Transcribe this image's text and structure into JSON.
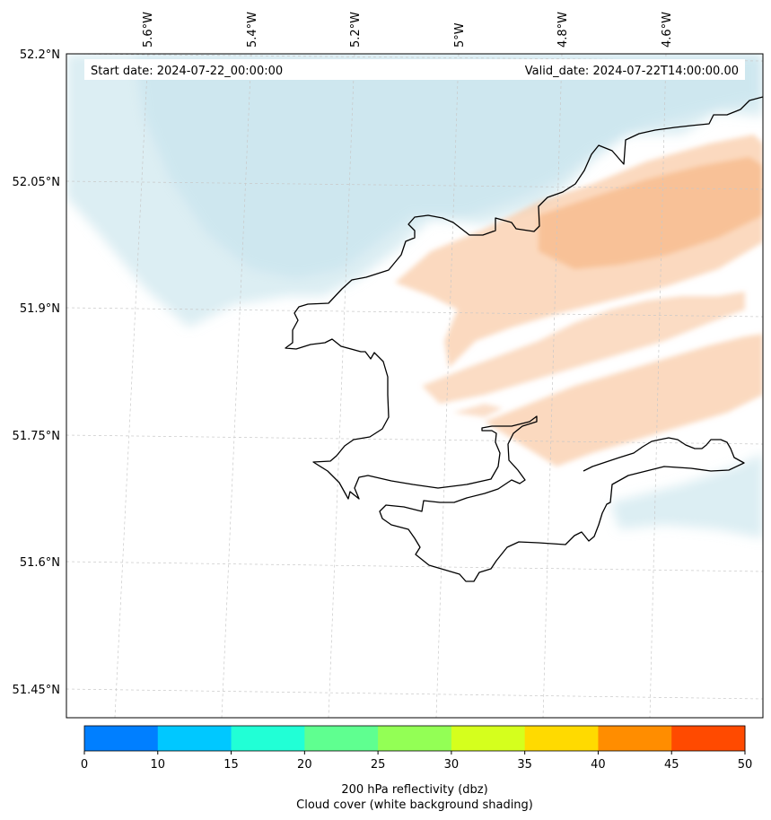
{
  "map": {
    "start_label": "Start date: 2024-07-22_00:00:00",
    "valid_label": "Valid_date: 2024-07-22T14:00:00.00",
    "lat_labels": [
      "52.2°N",
      "52.05°N",
      "51.9°N",
      "51.75°N",
      "51.6°N",
      "51.45°N"
    ],
    "lon_labels": [
      "5.6°W",
      "5.4°W",
      "5.2°W",
      "5°W",
      "4.8°W",
      "4.6°W"
    ],
    "colors": {
      "cloud_shading": "#bfe0ea",
      "reflectivity_shading": "#f7b98a",
      "coastline": "#000000",
      "gridline": "#c8c8c8"
    }
  },
  "colorbar": {
    "ticks": [
      "0",
      "10",
      "15",
      "20",
      "25",
      "30",
      "35",
      "40",
      "45",
      "50"
    ],
    "bins": [
      {
        "from": 0,
        "to": 10,
        "color": "#007fff"
      },
      {
        "from": 10,
        "to": 15,
        "color": "#00c8ff"
      },
      {
        "from": 15,
        "to": 20,
        "color": "#21ffd6"
      },
      {
        "from": 20,
        "to": 25,
        "color": "#5fff90"
      },
      {
        "from": 25,
        "to": 30,
        "color": "#93ff55"
      },
      {
        "from": 30,
        "to": 35,
        "color": "#d5ff1d"
      },
      {
        "from": 35,
        "to": 40,
        "color": "#ffda00"
      },
      {
        "from": 40,
        "to": 45,
        "color": "#ff8d00"
      },
      {
        "from": 45,
        "to": 50,
        "color": "#ff4a00"
      }
    ],
    "label_line1": "200 hPa reflectivity (dbz)",
    "label_line2": "Cloud cover (white background shading)"
  }
}
